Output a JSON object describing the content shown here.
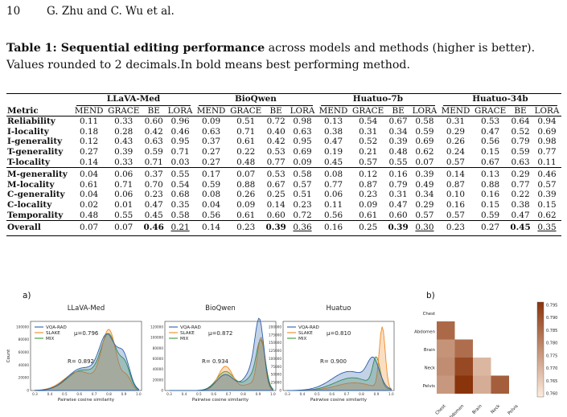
{
  "header": {
    "page_number": "10",
    "authors": "G. Zhu and C. Wu et al."
  },
  "caption": {
    "label": "Table 1:",
    "bold_title": " Sequential editing performance",
    "rest": " across models and methods (higher is better). Values rounded to 2 decimals.In bold means best performing method."
  },
  "table": {
    "metric_header": "Metric",
    "groups": [
      "LLaVA-Med",
      "BioQwen",
      "Huatuo-7b",
      "Huatuo-34b"
    ],
    "methods": [
      "MEND",
      "GRACE",
      "BE",
      "LORA"
    ],
    "blocks": [
      [
        {
          "metric": "Reliability",
          "values": [
            "0.11",
            "0.33",
            "0.60",
            "0.96",
            "0.09",
            "0.51",
            "0.72",
            "0.98",
            "0.13",
            "0.54",
            "0.67",
            "0.58",
            "0.31",
            "0.53",
            "0.64",
            "0.94"
          ]
        },
        {
          "metric": "I-locality",
          "values": [
            "0.18",
            "0.28",
            "0.42",
            "0.46",
            "0.63",
            "0.71",
            "0.40",
            "0.63",
            "0.38",
            "0.31",
            "0.34",
            "0.59",
            "0.29",
            "0.47",
            "0.52",
            "0.69"
          ]
        },
        {
          "metric": "I-generality",
          "values": [
            "0.12",
            "0.43",
            "0.63",
            "0.95",
            "0.37",
            "0.61",
            "0.42",
            "0.95",
            "0.47",
            "0.52",
            "0.39",
            "0.69",
            "0.26",
            "0.56",
            "0.79",
            "0.98"
          ]
        },
        {
          "metric": "T-generality",
          "values": [
            "0.27",
            "0.39",
            "0.59",
            "0.71",
            "0.27",
            "0.22",
            "0.53",
            "0.69",
            "0.19",
            "0.21",
            "0.48",
            "0.62",
            "0.24",
            "0.15",
            "0.59",
            "0.77"
          ]
        },
        {
          "metric": "T-locality",
          "values": [
            "0.14",
            "0.33",
            "0.71",
            "0.03",
            "0.27",
            "0.48",
            "0.77",
            "0.09",
            "0.45",
            "0.57",
            "0.55",
            "0.07",
            "0.57",
            "0.67",
            "0.63",
            "0.11"
          ]
        }
      ],
      [
        {
          "metric": "M-generality",
          "values": [
            "0.04",
            "0.06",
            "0.37",
            "0.55",
            "0.17",
            "0.07",
            "0.53",
            "0.58",
            "0.08",
            "0.12",
            "0.16",
            "0.39",
            "0.14",
            "0.13",
            "0.29",
            "0.46"
          ]
        },
        {
          "metric": "M-locality",
          "values": [
            "0.61",
            "0.71",
            "0.70",
            "0.54",
            "0.59",
            "0.88",
            "0.67",
            "0.57",
            "0.77",
            "0.87",
            "0.79",
            "0.49",
            "0.87",
            "0.88",
            "0.77",
            "0.57"
          ]
        },
        {
          "metric": "C-generality",
          "values": [
            "0.04",
            "0.06",
            "0.23",
            "0.68",
            "0.08",
            "0.26",
            "0.25",
            "0.51",
            "0.06",
            "0.23",
            "0.31",
            "0.34",
            "0.10",
            "0.16",
            "0.22",
            "0.39"
          ]
        },
        {
          "metric": "C-locality",
          "values": [
            "0.02",
            "0.01",
            "0.47",
            "0.35",
            "0.04",
            "0.09",
            "0.14",
            "0.23",
            "0.11",
            "0.09",
            "0.47",
            "0.29",
            "0.16",
            "0.15",
            "0.38",
            "0.15"
          ]
        },
        {
          "metric": "Temporality",
          "values": [
            "0.48",
            "0.55",
            "0.45",
            "0.58",
            "0.56",
            "0.61",
            "0.60",
            "0.72",
            "0.56",
            "0.61",
            "0.60",
            "0.57",
            "0.57",
            "0.59",
            "0.47",
            "0.62"
          ]
        }
      ]
    ],
    "overall": {
      "metric": "Overall",
      "values": [
        "0.07",
        "0.07",
        "0.46",
        "0.21",
        "0.14",
        "0.23",
        "0.39",
        "0.36",
        "0.16",
        "0.25",
        "0.39",
        "0.30",
        "0.23",
        "0.27",
        "0.45",
        "0.35"
      ],
      "bold_index": [
        2,
        6,
        10,
        14
      ],
      "underline_index": [
        3,
        7,
        11,
        15
      ]
    }
  },
  "figure": {
    "panel_a_label": "a)",
    "panel_b_label": "b)",
    "xlabel": "Pairwise cosine similarity",
    "ylabel": "Count",
    "legend": [
      "VQA-RAD",
      "SLAKE",
      "MIX"
    ],
    "colors": {
      "vqa": "#2b5fa8",
      "slake": "#f08a24",
      "mix": "#3a9a3a"
    },
    "subplots": [
      {
        "title": "LLaVA-Med",
        "mu": "μ=0.796",
        "r": "R= 0.892",
        "yticks": [
          "0",
          "20000",
          "40000",
          "60000",
          "80000",
          "100000"
        ]
      },
      {
        "title": "BioQwen",
        "mu": "μ=0.872",
        "r": "R= 0.934",
        "yticks": [
          "0",
          "20000",
          "40000",
          "60000",
          "80000",
          "100000",
          "120000"
        ]
      },
      {
        "title": "Huatuo",
        "mu": "μ=0.810",
        "r": "R= 0.900",
        "yticks": [
          "0",
          "25000",
          "50000",
          "75000",
          "100000",
          "125000",
          "150000",
          "175000",
          "200000"
        ]
      }
    ],
    "xticks": [
      "0.3",
      "0.4",
      "0.5",
      "0.6",
      "0.7",
      "0.8",
      "0.9",
      "1.0"
    ],
    "heatmap": {
      "labels": [
        "Chest",
        "Abdomen",
        "Brain",
        "Neck",
        "Pelvis"
      ],
      "colorbar_ticks": [
        "0.795",
        "0.790",
        "0.785",
        "0.780",
        "0.775",
        "0.770",
        "0.765",
        "0.760"
      ],
      "cells": [
        {
          "row": 1,
          "col": 0,
          "value": 0.785
        },
        {
          "row": 2,
          "col": 0,
          "value": 0.777
        },
        {
          "row": 2,
          "col": 1,
          "value": 0.784
        },
        {
          "row": 3,
          "col": 0,
          "value": 0.778
        },
        {
          "row": 3,
          "col": 1,
          "value": 0.791
        },
        {
          "row": 3,
          "col": 2,
          "value": 0.77
        },
        {
          "row": 4,
          "col": 0,
          "value": 0.776
        },
        {
          "row": 4,
          "col": 1,
          "value": 0.795
        },
        {
          "row": 4,
          "col": 2,
          "value": 0.772
        },
        {
          "row": 4,
          "col": 3,
          "value": 0.787
        }
      ]
    }
  }
}
